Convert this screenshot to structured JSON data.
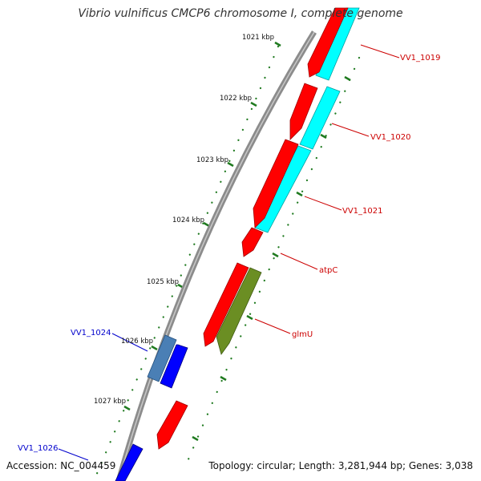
{
  "title": "Vibrio vulnificus CMCP6 chromosome I, complete genome",
  "accession_text": "Accession: NC_004459",
  "summary_text": "Topology: circular; Length: 3,281,944 bp; Genes: 3,038",
  "colors": {
    "backbone": "#8c8c8c",
    "forward_gene": "#ff0000",
    "forward_highlight": "#00ffff",
    "reverse_gene": "#0000ff",
    "reverse_alt": "#4a7fb5",
    "olive_gene": "#6b8e23",
    "tick": "#1f7a1f",
    "forward_label": "#cc0000",
    "reverse_label": "#0000cc"
  },
  "kbp_labels": [
    "1021 kbp",
    "1022 kbp",
    "1023 kbp",
    "1024 kbp",
    "1025 kbp",
    "1026 kbp",
    "1027 kbp"
  ],
  "forward_genes": [
    {
      "name": "VV1_1019"
    },
    {
      "name": "VV1_1020"
    },
    {
      "name": "VV1_1021"
    },
    {
      "name": "atpC"
    },
    {
      "name": "glmU"
    }
  ],
  "reverse_genes": [
    {
      "name": "VV1_1024"
    },
    {
      "name": "VV1_1026"
    }
  ]
}
